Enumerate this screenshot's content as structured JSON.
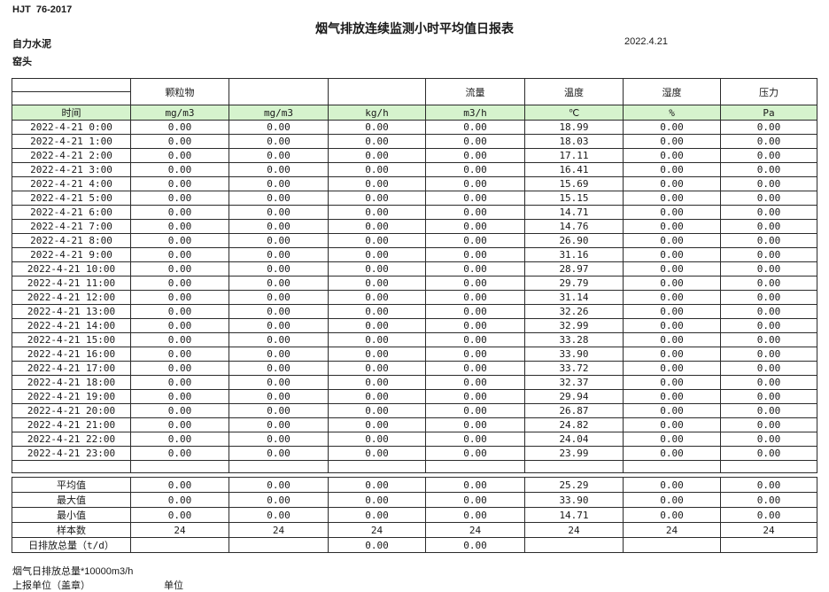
{
  "page": {
    "doc_code": "HJT  76-2017",
    "title": "烟气排放连续监测小时平均值日报表",
    "company": "自力水泥",
    "station": "窑头",
    "date": "2022.4.21"
  },
  "table": {
    "group_headers": [
      "",
      "颗粒物",
      "",
      "",
      "流量",
      "温度",
      "湿度",
      "压力"
    ],
    "unit_row": [
      "时间",
      "mg/m3",
      "mg/m3",
      "kg/h",
      "m3/h",
      "℃",
      "%",
      "Pa"
    ],
    "rows": [
      {
        "time": "2022-4-21 0:00",
        "values": [
          "0.00",
          "0.00",
          "0.00",
          "0.00",
          "18.99",
          "0.00",
          "0.00"
        ]
      },
      {
        "time": "2022-4-21 1:00",
        "values": [
          "0.00",
          "0.00",
          "0.00",
          "0.00",
          "18.03",
          "0.00",
          "0.00"
        ]
      },
      {
        "time": "2022-4-21 2:00",
        "values": [
          "0.00",
          "0.00",
          "0.00",
          "0.00",
          "17.11",
          "0.00",
          "0.00"
        ]
      },
      {
        "time": "2022-4-21 3:00",
        "values": [
          "0.00",
          "0.00",
          "0.00",
          "0.00",
          "16.41",
          "0.00",
          "0.00"
        ]
      },
      {
        "time": "2022-4-21 4:00",
        "values": [
          "0.00",
          "0.00",
          "0.00",
          "0.00",
          "15.69",
          "0.00",
          "0.00"
        ]
      },
      {
        "time": "2022-4-21 5:00",
        "values": [
          "0.00",
          "0.00",
          "0.00",
          "0.00",
          "15.15",
          "0.00",
          "0.00"
        ]
      },
      {
        "time": "2022-4-21 6:00",
        "values": [
          "0.00",
          "0.00",
          "0.00",
          "0.00",
          "14.71",
          "0.00",
          "0.00"
        ]
      },
      {
        "time": "2022-4-21 7:00",
        "values": [
          "0.00",
          "0.00",
          "0.00",
          "0.00",
          "14.76",
          "0.00",
          "0.00"
        ]
      },
      {
        "time": "2022-4-21 8:00",
        "values": [
          "0.00",
          "0.00",
          "0.00",
          "0.00",
          "26.90",
          "0.00",
          "0.00"
        ]
      },
      {
        "time": "2022-4-21 9:00",
        "values": [
          "0.00",
          "0.00",
          "0.00",
          "0.00",
          "31.16",
          "0.00",
          "0.00"
        ]
      },
      {
        "time": "2022-4-21 10:00",
        "values": [
          "0.00",
          "0.00",
          "0.00",
          "0.00",
          "28.97",
          "0.00",
          "0.00"
        ]
      },
      {
        "time": "2022-4-21 11:00",
        "values": [
          "0.00",
          "0.00",
          "0.00",
          "0.00",
          "29.79",
          "0.00",
          "0.00"
        ]
      },
      {
        "time": "2022-4-21 12:00",
        "values": [
          "0.00",
          "0.00",
          "0.00",
          "0.00",
          "31.14",
          "0.00",
          "0.00"
        ]
      },
      {
        "time": "2022-4-21 13:00",
        "values": [
          "0.00",
          "0.00",
          "0.00",
          "0.00",
          "32.26",
          "0.00",
          "0.00"
        ]
      },
      {
        "time": "2022-4-21 14:00",
        "values": [
          "0.00",
          "0.00",
          "0.00",
          "0.00",
          "32.99",
          "0.00",
          "0.00"
        ]
      },
      {
        "time": "2022-4-21 15:00",
        "values": [
          "0.00",
          "0.00",
          "0.00",
          "0.00",
          "33.28",
          "0.00",
          "0.00"
        ]
      },
      {
        "time": "2022-4-21 16:00",
        "values": [
          "0.00",
          "0.00",
          "0.00",
          "0.00",
          "33.90",
          "0.00",
          "0.00"
        ]
      },
      {
        "time": "2022-4-21 17:00",
        "values": [
          "0.00",
          "0.00",
          "0.00",
          "0.00",
          "33.72",
          "0.00",
          "0.00"
        ]
      },
      {
        "time": "2022-4-21 18:00",
        "values": [
          "0.00",
          "0.00",
          "0.00",
          "0.00",
          "32.37",
          "0.00",
          "0.00"
        ]
      },
      {
        "time": "2022-4-21 19:00",
        "values": [
          "0.00",
          "0.00",
          "0.00",
          "0.00",
          "29.94",
          "0.00",
          "0.00"
        ]
      },
      {
        "time": "2022-4-21 20:00",
        "values": [
          "0.00",
          "0.00",
          "0.00",
          "0.00",
          "26.87",
          "0.00",
          "0.00"
        ]
      },
      {
        "time": "2022-4-21 21:00",
        "values": [
          "0.00",
          "0.00",
          "0.00",
          "0.00",
          "24.82",
          "0.00",
          "0.00"
        ]
      },
      {
        "time": "2022-4-21 22:00",
        "values": [
          "0.00",
          "0.00",
          "0.00",
          "0.00",
          "24.04",
          "0.00",
          "0.00"
        ]
      },
      {
        "time": "2022-4-21 23:00",
        "values": [
          "0.00",
          "0.00",
          "0.00",
          "0.00",
          "23.99",
          "0.00",
          "0.00"
        ]
      }
    ],
    "summary": [
      {
        "label": "平均值",
        "values": [
          "0.00",
          "0.00",
          "0.00",
          "0.00",
          "25.29",
          "0.00",
          "0.00"
        ]
      },
      {
        "label": "最大值",
        "values": [
          "0.00",
          "0.00",
          "0.00",
          "0.00",
          "33.90",
          "0.00",
          "0.00"
        ]
      },
      {
        "label": "最小值",
        "values": [
          "0.00",
          "0.00",
          "0.00",
          "0.00",
          "14.71",
          "0.00",
          "0.00"
        ]
      },
      {
        "label": "样本数",
        "values": [
          "24",
          "24",
          "24",
          "24",
          "24",
          "24",
          "24"
        ]
      },
      {
        "label": "日排放总量（t/d）",
        "values": [
          "",
          "",
          "0.00",
          "0.00",
          "",
          "",
          ""
        ]
      }
    ]
  },
  "footer": {
    "note": "烟气日排放总量*10000m3/h",
    "report_unit_label": "上报单位（盖章）",
    "unit_label": "单位"
  },
  "colors": {
    "header_green": "#d5f3cd"
  }
}
